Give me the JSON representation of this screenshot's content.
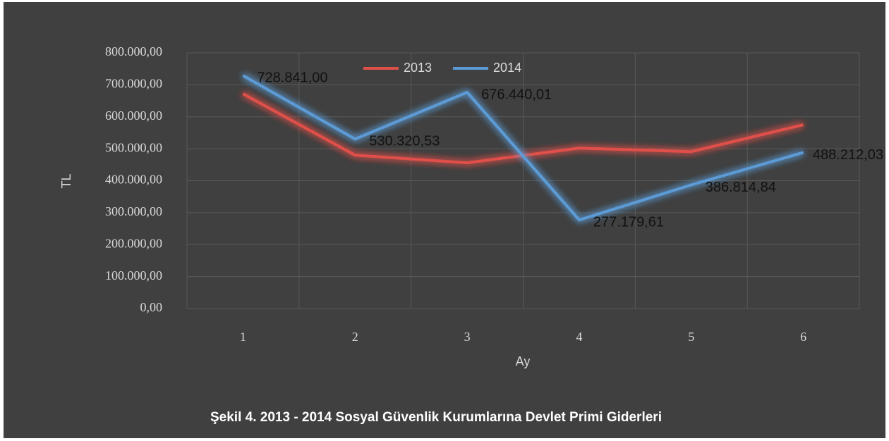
{
  "chart_data": {
    "type": "line",
    "title": "Şekil 4. 2013 - 2014 Sosyal Güvenlik Kurumlarına Devlet Primi  Giderleri",
    "x_label": "Ay",
    "y_label": "TL",
    "categories": [
      1,
      2,
      3,
      4,
      5,
      6
    ],
    "series": [
      {
        "name": "2013",
        "color": "#e0504a",
        "values": [
          672000,
          480000,
          456000,
          502000,
          491000,
          575000
        ]
      },
      {
        "name": "2014",
        "color": "#5b9bd5",
        "values": [
          728841.0,
          530320.53,
          676440.01,
          277179.61,
          386814.84,
          488212.03
        ],
        "value_labels": [
          "728.841,00",
          "530.320,53",
          "676.440,01",
          "277.179,61",
          "386.814,84",
          "488.212,03"
        ]
      }
    ],
    "ylim": [
      0,
      800000
    ],
    "yticks": [
      {
        "value": 0,
        "label": "0,00"
      },
      {
        "value": 100000,
        "label": "100.000,00"
      },
      {
        "value": 200000,
        "label": "200.000,00"
      },
      {
        "value": 300000,
        "label": "300.000,00"
      },
      {
        "value": 400000,
        "label": "400.000,00"
      },
      {
        "value": 500000,
        "label": "500.000,00"
      },
      {
        "value": 600000,
        "label": "600.000,00"
      },
      {
        "value": 700000,
        "label": "700.000,00"
      },
      {
        "value": 800000,
        "label": "800.000,00"
      }
    ],
    "grid": true,
    "legend": "top"
  }
}
